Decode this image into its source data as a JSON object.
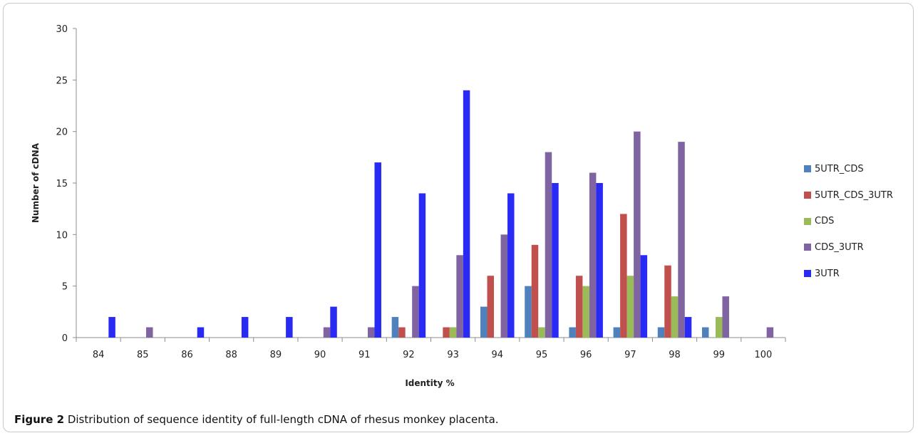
{
  "chart_data": {
    "type": "bar",
    "title": "",
    "xlabel": "Identity %",
    "ylabel": "Number of  cDNA",
    "ylim": [
      0,
      30
    ],
    "yticks": [
      "0",
      "5",
      "10",
      "15",
      "20",
      "25",
      "30"
    ],
    "grid": false,
    "legend_position": "right",
    "categories": [
      "84",
      "85",
      "86",
      "88",
      "89",
      "90",
      "91",
      "92",
      "93",
      "94",
      "95",
      "96",
      "97",
      "98",
      "99",
      "100"
    ],
    "series": [
      {
        "name": "5UTR_CDS",
        "color": "#4f81bd",
        "values": [
          0,
          0,
          0,
          0,
          0,
          0,
          0,
          2,
          0,
          3,
          5,
          1,
          1,
          1,
          1,
          0
        ]
      },
      {
        "name": "5UTR_CDS_3UTR",
        "color": "#c0504d",
        "values": [
          0,
          0,
          0,
          0,
          0,
          0,
          0,
          1,
          1,
          6,
          9,
          6,
          12,
          7,
          0,
          0
        ]
      },
      {
        "name": "CDS",
        "color": "#9bbb59",
        "values": [
          0,
          0,
          0,
          0,
          0,
          0,
          0,
          0,
          1,
          0,
          1,
          5,
          6,
          4,
          2,
          0
        ]
      },
      {
        "name": "CDS_3UTR",
        "color": "#8064a2",
        "values": [
          0,
          1,
          0,
          0,
          0,
          1,
          1,
          5,
          8,
          10,
          18,
          16,
          20,
          19,
          4,
          1
        ]
      },
      {
        "name": "3UTR",
        "color": "#2a2af5",
        "values": [
          2,
          0,
          1,
          2,
          2,
          3,
          17,
          14,
          24,
          14,
          15,
          15,
          8,
          2,
          0,
          0
        ]
      }
    ]
  },
  "caption": {
    "label": "Figure 2",
    "text": " Distribution of sequence identity of full-length cDNA of rhesus monkey placenta."
  }
}
